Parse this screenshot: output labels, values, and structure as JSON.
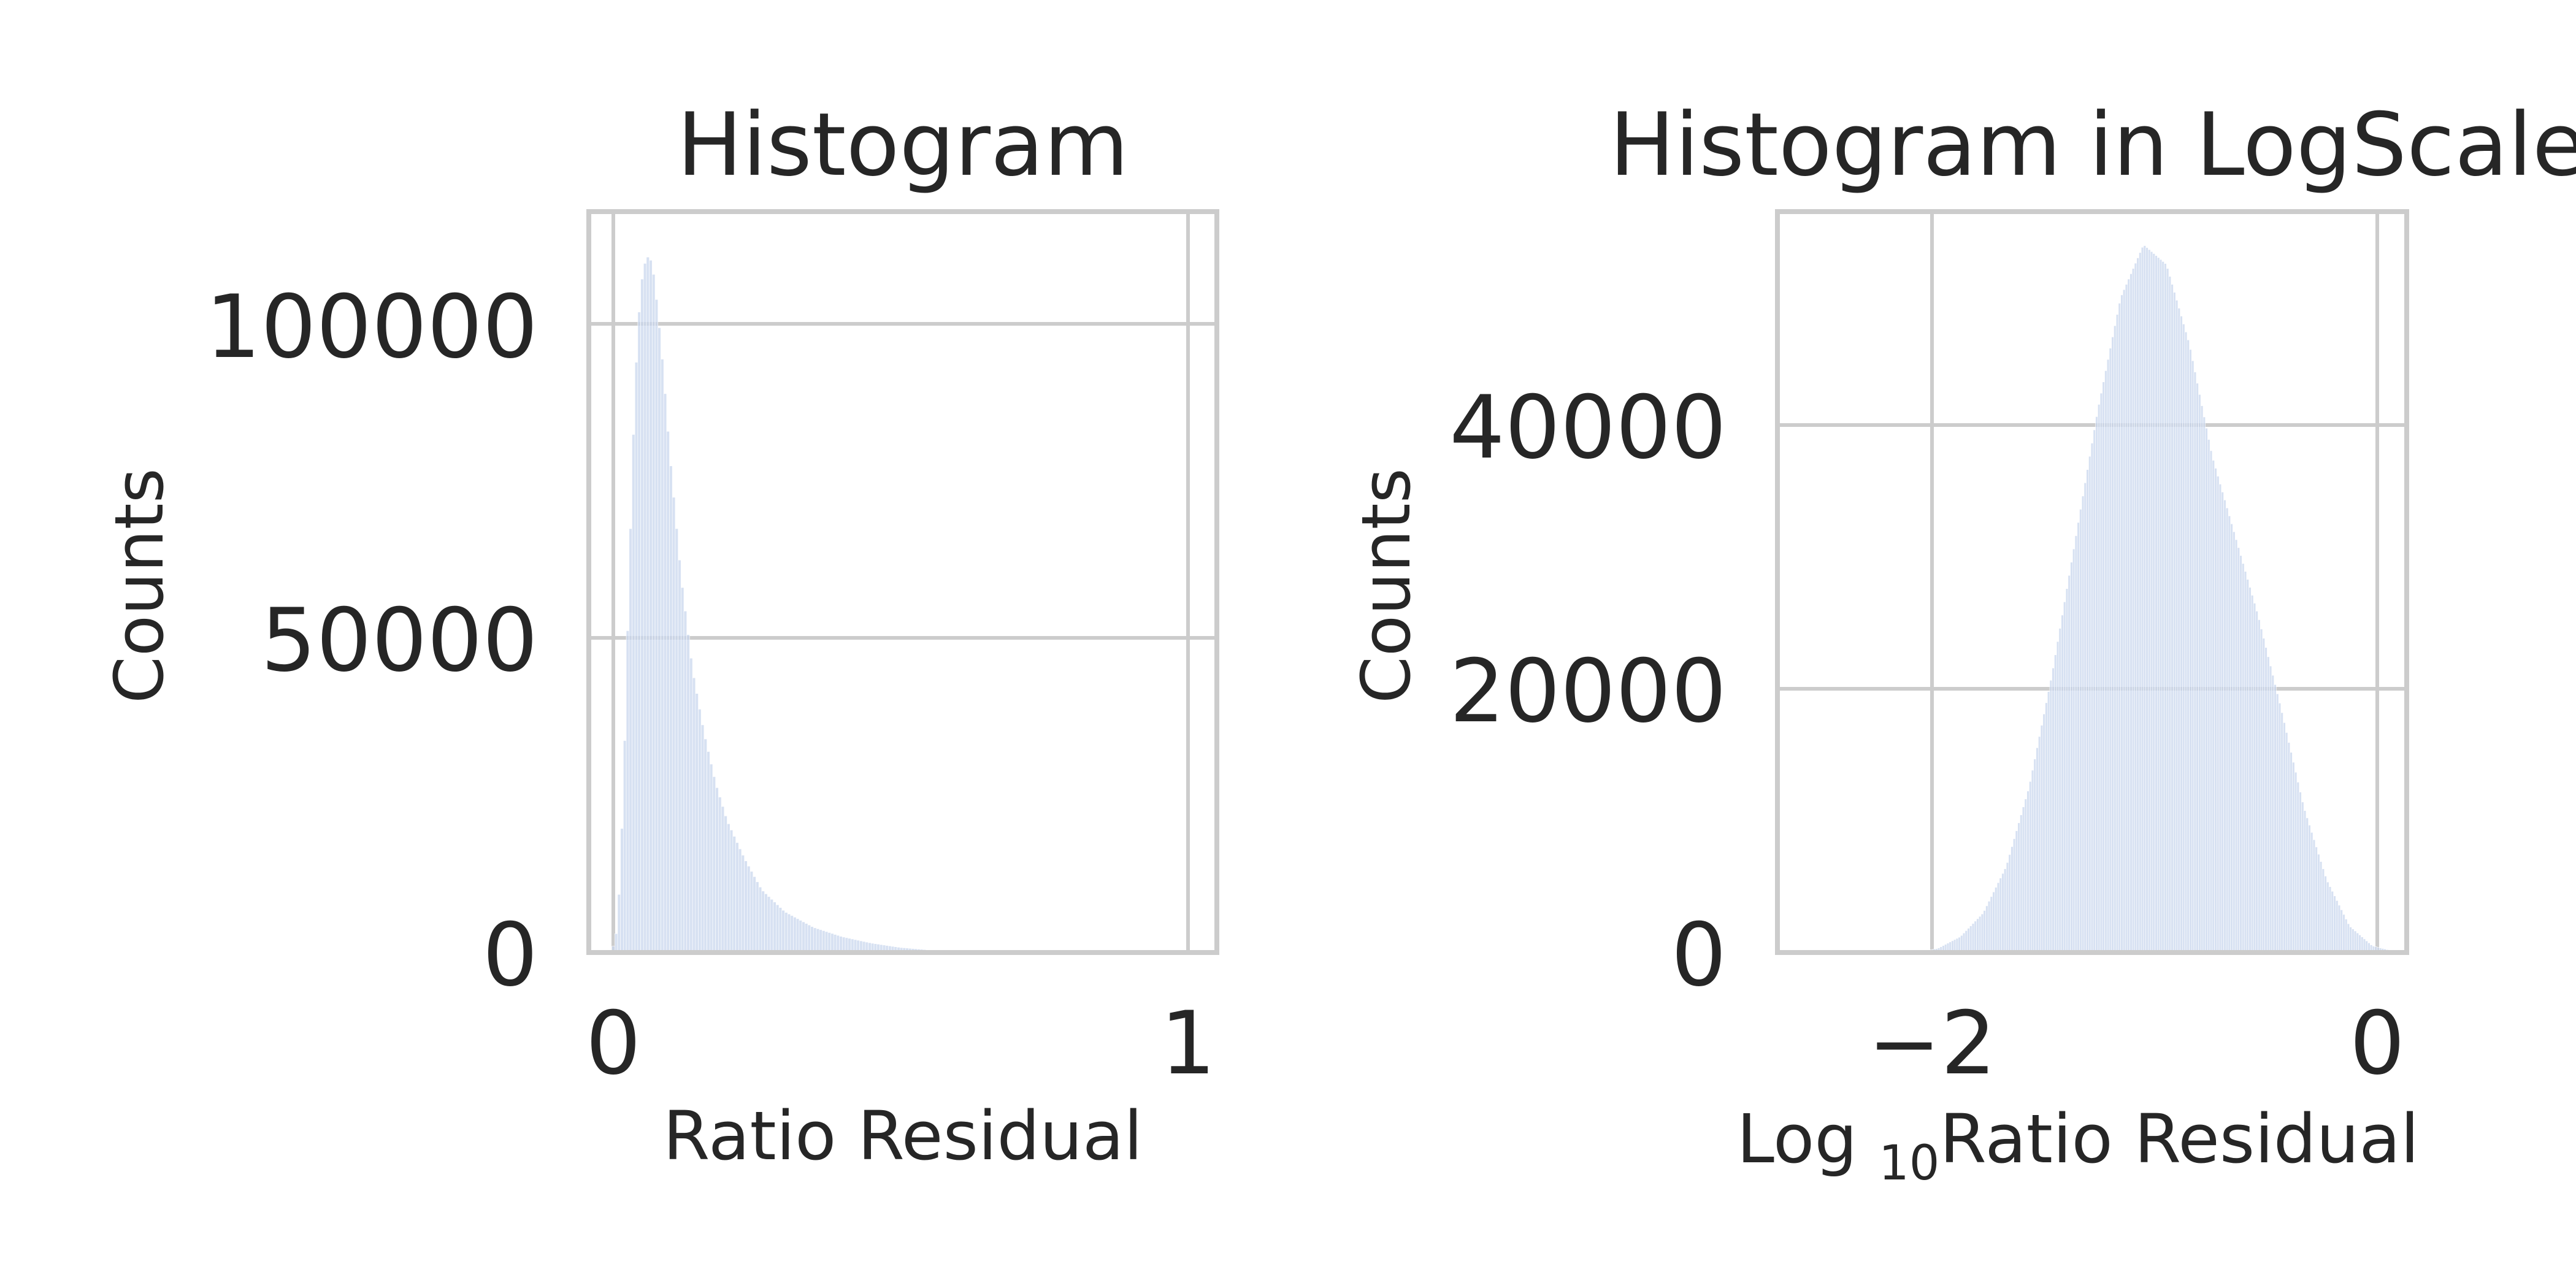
{
  "colors": {
    "bar": "#c9d7ee",
    "grid": "#cccccc",
    "text": "#262626"
  },
  "chart_data": [
    {
      "type": "bar",
      "title": "Histogram",
      "xlabel": "Ratio Residual",
      "ylabel": "Counts",
      "xlim": [
        -0.04,
        1.05
      ],
      "ylim": [
        0,
        118000
      ],
      "xticks": [
        0,
        1
      ],
      "xtick_labels": [
        "0",
        "1"
      ],
      "yticks": [
        0,
        50000,
        100000
      ],
      "ytick_labels": [
        "0",
        "50000",
        "100000"
      ],
      "grid": true,
      "profile": [
        [
          0.0,
          0
        ],
        [
          0.01,
          4000
        ],
        [
          0.02,
          25000
        ],
        [
          0.03,
          60000
        ],
        [
          0.04,
          90000
        ],
        [
          0.05,
          106000
        ],
        [
          0.06,
          111000
        ],
        [
          0.07,
          110000
        ],
        [
          0.08,
          102000
        ],
        [
          0.09,
          92000
        ],
        [
          0.1,
          80000
        ],
        [
          0.12,
          60000
        ],
        [
          0.14,
          45000
        ],
        [
          0.16,
          35000
        ],
        [
          0.18,
          27000
        ],
        [
          0.2,
          21000
        ],
        [
          0.23,
          15000
        ],
        [
          0.26,
          10000
        ],
        [
          0.3,
          6500
        ],
        [
          0.35,
          4000
        ],
        [
          0.4,
          2500
        ],
        [
          0.45,
          1500
        ],
        [
          0.5,
          800
        ],
        [
          0.55,
          400
        ],
        [
          0.6,
          150
        ],
        [
          0.7,
          40
        ],
        [
          0.8,
          10
        ],
        [
          1.0,
          0
        ]
      ]
    },
    {
      "type": "bar",
      "title": "Histogram in LogScale",
      "xlabel": "Log",
      "xlabel_subscript": "10",
      "xlabel_suffix": "Ratio Residual",
      "ylabel": "Counts",
      "xlim": [
        -2.7,
        0.05
      ],
      "ylim": [
        0,
        56000
      ],
      "xticks": [
        -2,
        0
      ],
      "xtick_labels": [
        "−2",
        "0"
      ],
      "yticks": [
        0,
        20000,
        40000
      ],
      "ytick_labels": [
        "0",
        "20000",
        "40000"
      ],
      "grid": true,
      "profile": [
        [
          -2.1,
          0
        ],
        [
          -2.0,
          300
        ],
        [
          -1.9,
          1200
        ],
        [
          -1.8,
          3000
        ],
        [
          -1.7,
          6500
        ],
        [
          -1.6,
          12500
        ],
        [
          -1.5,
          21000
        ],
        [
          -1.4,
          31000
        ],
        [
          -1.3,
          41000
        ],
        [
          -1.2,
          49500
        ],
        [
          -1.1,
          53500
        ],
        [
          -1.0,
          52000
        ],
        [
          -0.9,
          46000
        ],
        [
          -0.8,
          37500
        ],
        [
          -0.7,
          31500
        ],
        [
          -0.6,
          25500
        ],
        [
          -0.5,
          18500
        ],
        [
          -0.4,
          11000
        ],
        [
          -0.3,
          5500
        ],
        [
          -0.2,
          2000
        ],
        [
          -0.1,
          500
        ],
        [
          -0.02,
          150
        ],
        [
          0.0,
          0
        ]
      ]
    }
  ]
}
